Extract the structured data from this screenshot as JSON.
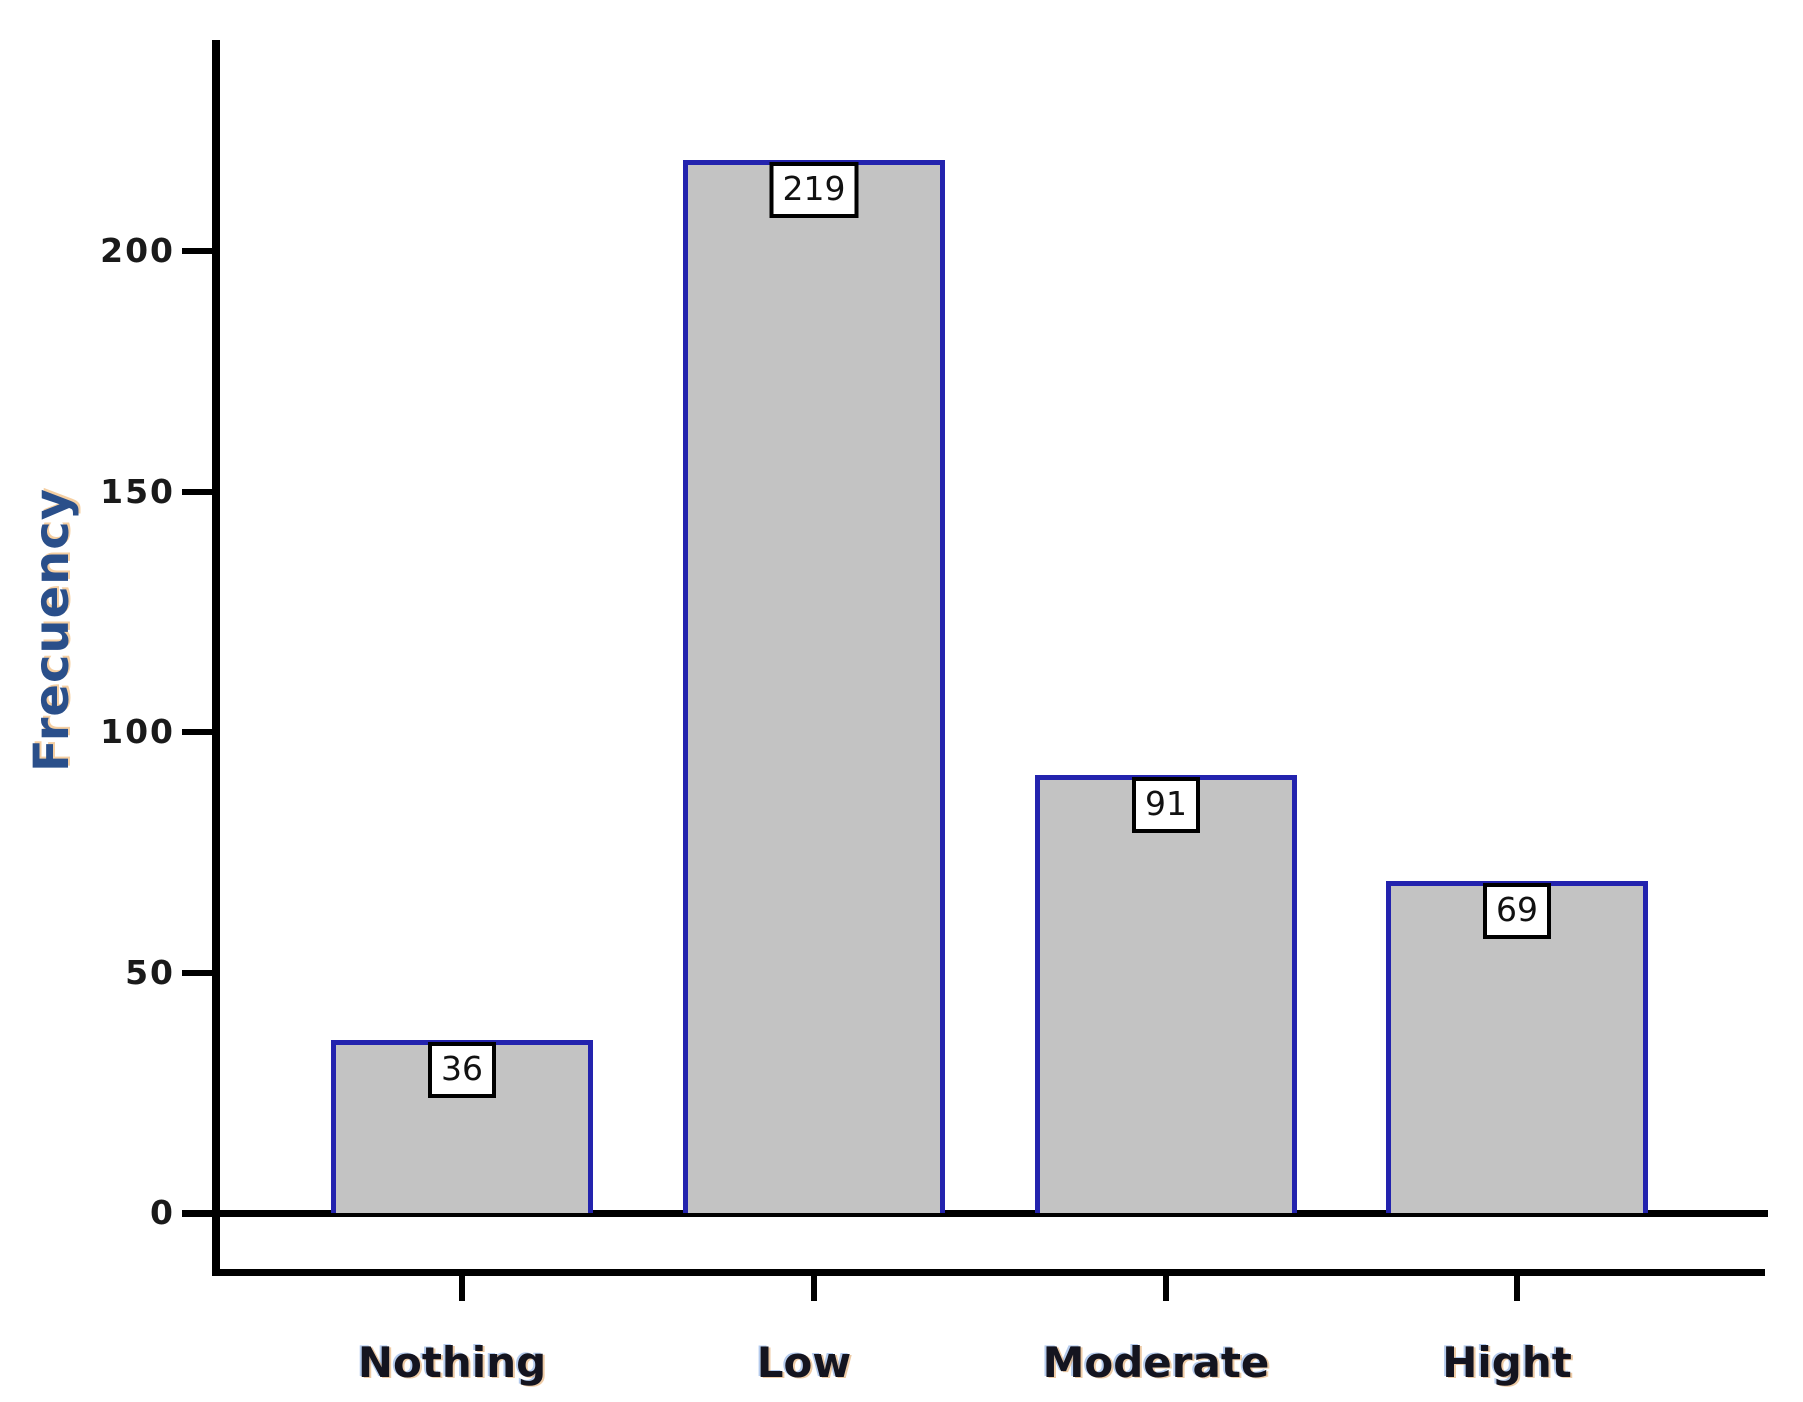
{
  "chart_data": {
    "type": "bar",
    "title": "",
    "xlabel": "",
    "ylabel": "Frecuency",
    "categories": [
      "Nothing",
      "Low",
      "Moderate",
      "Hight"
    ],
    "values": [
      36,
      219,
      91,
      69
    ],
    "bar_value_labels": [
      "36",
      "219",
      "91",
      "69"
    ],
    "yticks": [
      0,
      50,
      100,
      150,
      200
    ],
    "ylim": [
      0,
      244
    ],
    "grid": false,
    "legend_position": "none",
    "colors": {
      "bar_fill": "#c3c3c3",
      "bar_border": "#2323ae",
      "axis": "#000000",
      "ylabel_text": "#2a4f8a",
      "category_text": "#14141f",
      "tick_label_text": "#1a1a1a",
      "value_box_bg": "#ffffff",
      "value_box_border": "#000000",
      "background": "#ffffff"
    }
  }
}
